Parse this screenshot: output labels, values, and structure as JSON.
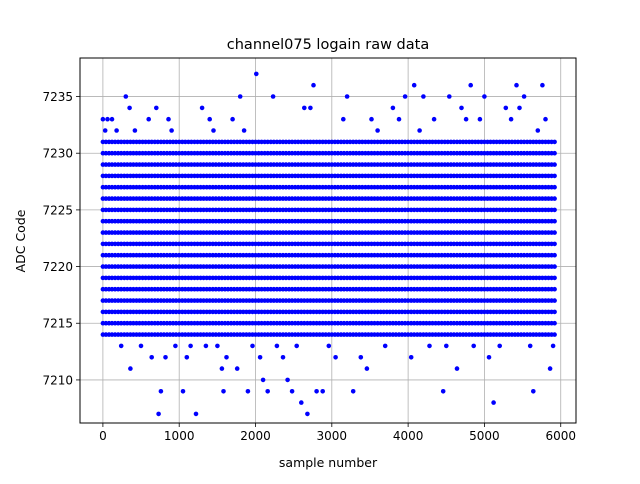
{
  "chart_data": {
    "type": "scatter",
    "title": "channel075 logain raw data",
    "xlabel": "sample number",
    "ylabel": "ADC Code",
    "xlim": [
      -300,
      6200
    ],
    "ylim": [
      7206.2,
      7238.4
    ],
    "xticks": [
      0,
      1000,
      2000,
      3000,
      4000,
      5000,
      6000
    ],
    "yticks": [
      7210,
      7215,
      7220,
      7225,
      7230,
      7235
    ],
    "grid": true,
    "marker": "dot",
    "series": [
      {
        "color": "#0000ff",
        "band_x_range": [
          0,
          5920
        ],
        "band_step": 40,
        "band_levels": [
          7214,
          7215,
          7216,
          7217,
          7218,
          7219,
          7220,
          7221,
          7222,
          7223,
          7224,
          7225,
          7226,
          7227,
          7228,
          7229,
          7230,
          7231
        ],
        "outlier_points": [
          [
            0,
            7233
          ],
          [
            30,
            7232
          ],
          [
            60,
            7233
          ],
          [
            120,
            7233
          ],
          [
            180,
            7232
          ],
          [
            240,
            7213
          ],
          [
            300,
            7235
          ],
          [
            350,
            7234
          ],
          [
            360,
            7211
          ],
          [
            420,
            7232
          ],
          [
            500,
            7213
          ],
          [
            600,
            7233
          ],
          [
            640,
            7212
          ],
          [
            700,
            7234
          ],
          [
            730,
            7207
          ],
          [
            760,
            7209
          ],
          [
            820,
            7212
          ],
          [
            860,
            7233
          ],
          [
            900,
            7232
          ],
          [
            950,
            7213
          ],
          [
            1050,
            7209
          ],
          [
            1100,
            7212
          ],
          [
            1150,
            7213
          ],
          [
            1220,
            7207
          ],
          [
            1300,
            7234
          ],
          [
            1350,
            7213
          ],
          [
            1400,
            7233
          ],
          [
            1450,
            7232
          ],
          [
            1500,
            7213
          ],
          [
            1560,
            7211
          ],
          [
            1580,
            7209
          ],
          [
            1620,
            7212
          ],
          [
            1700,
            7233
          ],
          [
            1760,
            7211
          ],
          [
            1800,
            7235
          ],
          [
            1850,
            7232
          ],
          [
            1900,
            7209
          ],
          [
            1960,
            7213
          ],
          [
            2010,
            7237
          ],
          [
            2060,
            7212
          ],
          [
            2100,
            7210
          ],
          [
            2160,
            7209
          ],
          [
            2230,
            7235
          ],
          [
            2280,
            7213
          ],
          [
            2360,
            7212
          ],
          [
            2420,
            7210
          ],
          [
            2480,
            7209
          ],
          [
            2540,
            7213
          ],
          [
            2600,
            7208
          ],
          [
            2640,
            7234
          ],
          [
            2680,
            7207
          ],
          [
            2720,
            7234
          ],
          [
            2760,
            7236
          ],
          [
            2800,
            7209
          ],
          [
            2880,
            7209
          ],
          [
            2960,
            7213
          ],
          [
            3050,
            7212
          ],
          [
            3150,
            7233
          ],
          [
            3200,
            7235
          ],
          [
            3280,
            7209
          ],
          [
            3380,
            7212
          ],
          [
            3460,
            7211
          ],
          [
            3520,
            7233
          ],
          [
            3600,
            7232
          ],
          [
            3700,
            7213
          ],
          [
            3800,
            7234
          ],
          [
            3880,
            7233
          ],
          [
            3960,
            7235
          ],
          [
            4040,
            7212
          ],
          [
            4080,
            7236
          ],
          [
            4150,
            7232
          ],
          [
            4200,
            7235
          ],
          [
            4280,
            7213
          ],
          [
            4340,
            7233
          ],
          [
            4460,
            7209
          ],
          [
            4500,
            7213
          ],
          [
            4540,
            7235
          ],
          [
            4640,
            7211
          ],
          [
            4700,
            7234
          ],
          [
            4760,
            7233
          ],
          [
            4820,
            7236
          ],
          [
            4860,
            7213
          ],
          [
            4940,
            7233
          ],
          [
            5000,
            7235
          ],
          [
            5060,
            7212
          ],
          [
            5120,
            7208
          ],
          [
            5200,
            7213
          ],
          [
            5280,
            7234
          ],
          [
            5350,
            7233
          ],
          [
            5420,
            7236
          ],
          [
            5460,
            7234
          ],
          [
            5520,
            7235
          ],
          [
            5600,
            7213
          ],
          [
            5640,
            7209
          ],
          [
            5700,
            7232
          ],
          [
            5760,
            7236
          ],
          [
            5800,
            7233
          ],
          [
            5860,
            7211
          ],
          [
            5900,
            7213
          ]
        ]
      }
    ]
  }
}
